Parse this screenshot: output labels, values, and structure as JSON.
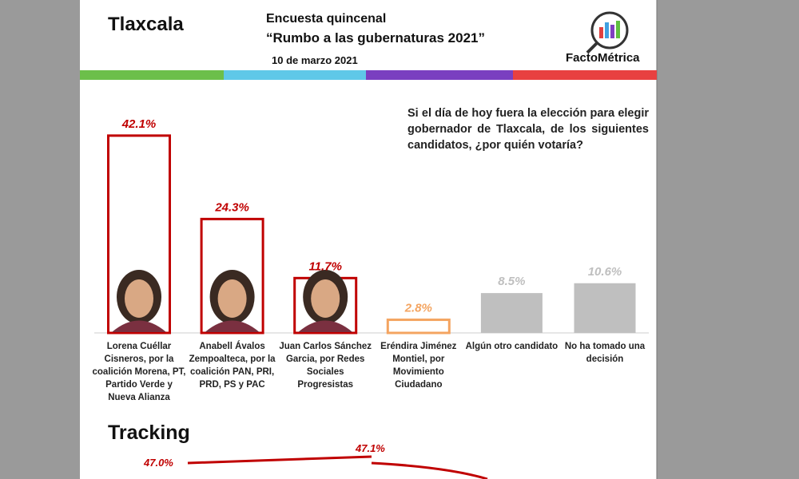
{
  "header": {
    "state": "Tlaxcala",
    "title": "Encuesta quincenal",
    "subtitle": "“Rumbo a las gubernaturas 2021”",
    "date": "10 de marzo 2021",
    "brand": "FactoMétrica"
  },
  "question": "Si el día de hoy fuera la elección para elegir gobernador de Tlaxcala, de los siguientes candidatos, ¿por quién votaría?",
  "chart_data": {
    "type": "bar",
    "categories": [
      "Lorena Cuéllar Cisneros, por la coalición Morena, PT, Partido Verde y Nueva Alianza",
      "Anabell Ávalos Zempoalteca, por la coalición PAN, PRI, PRD, PS y PAC",
      "Juan Carlos Sánchez Garcia, por Redes Sociales Progresistas",
      "Eréndira Jiménez Montiel, por Movimiento Ciudadano",
      "Algún otro candidato",
      "No ha tomado una decisión"
    ],
    "values": [
      42.1,
      24.3,
      11.7,
      2.8,
      8.5,
      10.6
    ],
    "value_labels": [
      "42.1%",
      "24.3%",
      "11.7%",
      "2.8%",
      "8.5%",
      "10.6%"
    ],
    "colors": [
      "#c00000",
      "#c00000",
      "#c00000",
      "#f4a460",
      "#bfbfbf",
      "#bfbfbf"
    ],
    "ylim": [
      0,
      50
    ]
  },
  "tracking": {
    "title": "Tracking",
    "values": [
      47.0,
      47.1
    ],
    "value_labels": [
      "47.0%",
      "47.1%"
    ],
    "color": "#c00000"
  }
}
